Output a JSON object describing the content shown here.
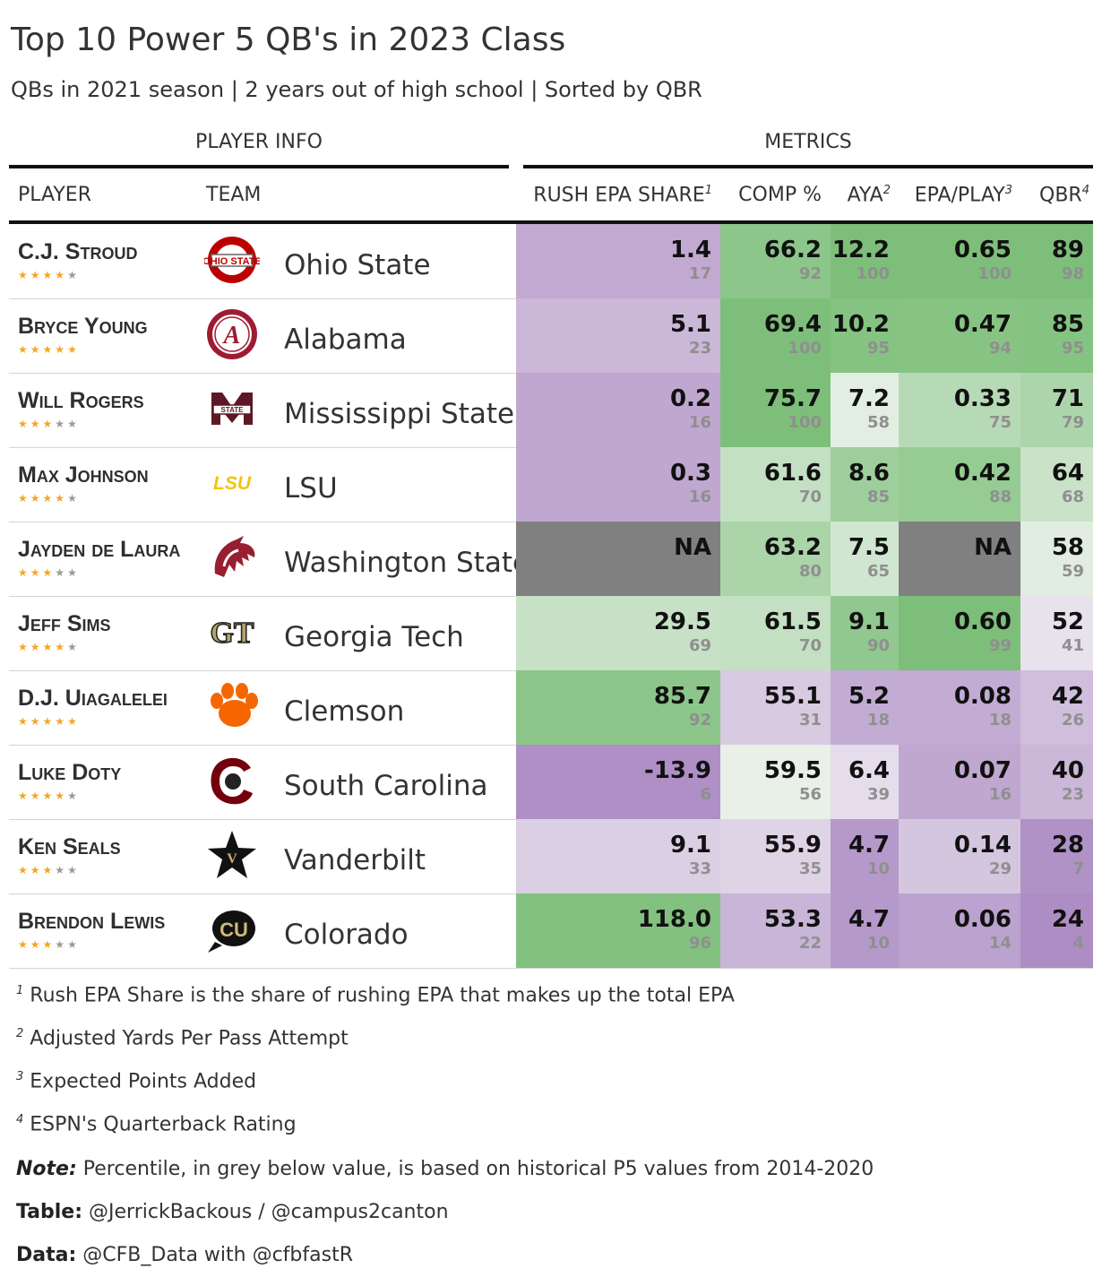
{
  "title": "Top 10 Power 5 QB's in 2023 Class",
  "subtitle": "QBs in 2021 season | 2 years out of high school | Sorted by QBR",
  "spanners": {
    "player_info": "PLAYER INFO",
    "metrics": "METRICS"
  },
  "columns": {
    "player": "PLAYER",
    "team": "TEAM",
    "rush": "RUSH EPA SHARE",
    "rush_note": "1",
    "comp": "COMP %",
    "aya": "AYA",
    "aya_note": "2",
    "epa": "EPA/PLAY",
    "epa_note": "3",
    "qbr": "QBR",
    "qbr_note": "4"
  },
  "colors": {
    "na": "#808080",
    "green_max": "#7dbf7a",
    "purple_max": "#ad8dc4",
    "white": "#f7f7f7"
  },
  "chart_data": {
    "type": "table",
    "players": [
      {
        "name": "C.J. Stroud",
        "stars": 4,
        "team": "Ohio State",
        "logo": "ohio-state-logo",
        "rush": "1.4",
        "rush_pct": "17",
        "comp": "66.2",
        "comp_pct": "92",
        "aya": "12.2",
        "aya_pct": "100",
        "epa": "0.65",
        "epa_pct": "100",
        "qbr": "89",
        "qbr_pct": "98"
      },
      {
        "name": "Bryce Young",
        "stars": 5,
        "team": "Alabama",
        "logo": "alabama-logo",
        "rush": "5.1",
        "rush_pct": "23",
        "comp": "69.4",
        "comp_pct": "100",
        "aya": "10.2",
        "aya_pct": "95",
        "epa": "0.47",
        "epa_pct": "94",
        "qbr": "85",
        "qbr_pct": "95"
      },
      {
        "name": "Will Rogers",
        "stars": 3,
        "team": "Mississippi State",
        "logo": "mississippi-state-logo",
        "rush": "0.2",
        "rush_pct": "16",
        "comp": "75.7",
        "comp_pct": "100",
        "aya": "7.2",
        "aya_pct": "58",
        "epa": "0.33",
        "epa_pct": "75",
        "qbr": "71",
        "qbr_pct": "79"
      },
      {
        "name": "Max Johnson",
        "stars": 4,
        "team": "LSU",
        "logo": "lsu-logo",
        "rush": "0.3",
        "rush_pct": "16",
        "comp": "61.6",
        "comp_pct": "70",
        "aya": "8.6",
        "aya_pct": "85",
        "epa": "0.42",
        "epa_pct": "88",
        "qbr": "64",
        "qbr_pct": "68"
      },
      {
        "name": "Jayden de Laura",
        "stars": 3,
        "team": "Washington State",
        "logo": "washington-state-logo",
        "rush": "NA",
        "rush_pct": "",
        "comp": "63.2",
        "comp_pct": "80",
        "aya": "7.5",
        "aya_pct": "65",
        "epa": "NA",
        "epa_pct": "",
        "qbr": "58",
        "qbr_pct": "59"
      },
      {
        "name": "Jeff Sims",
        "stars": 4,
        "team": "Georgia Tech",
        "logo": "georgia-tech-logo",
        "rush": "29.5",
        "rush_pct": "69",
        "comp": "61.5",
        "comp_pct": "70",
        "aya": "9.1",
        "aya_pct": "90",
        "epa": "0.60",
        "epa_pct": "99",
        "qbr": "52",
        "qbr_pct": "41"
      },
      {
        "name": "D.J. Uiagalelei",
        "stars": 5,
        "team": "Clemson",
        "logo": "clemson-logo",
        "rush": "85.7",
        "rush_pct": "92",
        "comp": "55.1",
        "comp_pct": "31",
        "aya": "5.2",
        "aya_pct": "18",
        "epa": "0.08",
        "epa_pct": "18",
        "qbr": "42",
        "qbr_pct": "26"
      },
      {
        "name": "Luke Doty",
        "stars": 4,
        "team": "South Carolina",
        "logo": "south-carolina-logo",
        "rush": "-13.9",
        "rush_pct": "6",
        "comp": "59.5",
        "comp_pct": "56",
        "aya": "6.4",
        "aya_pct": "39",
        "epa": "0.07",
        "epa_pct": "16",
        "qbr": "40",
        "qbr_pct": "23"
      },
      {
        "name": "Ken Seals",
        "stars": 3,
        "team": "Vanderbilt",
        "logo": "vanderbilt-logo",
        "rush": "9.1",
        "rush_pct": "33",
        "comp": "55.9",
        "comp_pct": "35",
        "aya": "4.7",
        "aya_pct": "10",
        "epa": "0.14",
        "epa_pct": "29",
        "qbr": "28",
        "qbr_pct": "7"
      },
      {
        "name": "Brendon Lewis",
        "stars": 3,
        "team": "Colorado",
        "logo": "colorado-logo",
        "rush": "118.0",
        "rush_pct": "96",
        "comp": "53.3",
        "comp_pct": "22",
        "aya": "4.7",
        "aya_pct": "10",
        "epa": "0.06",
        "epa_pct": "14",
        "qbr": "24",
        "qbr_pct": "4"
      }
    ]
  },
  "footnotes": {
    "f1_num": "1",
    "f1": "Rush EPA Share is the share of rushing EPA that makes up the total EPA",
    "f2_num": "2",
    "f2": "Adjusted Yards Per Pass Attempt",
    "f3_num": "3",
    "f3": "Expected Points Added",
    "f4_num": "4",
    "f4": "ESPN's Quarterback Rating",
    "note_label": "Note:",
    "note": "Percentile, in grey below value, is based on historical P5 values from 2014-2020",
    "table_label": "Table:",
    "table": "@JerrickBackous / @campus2canton",
    "data_label": "Data:",
    "data": "@CFB_Data with @cfbfastR"
  }
}
